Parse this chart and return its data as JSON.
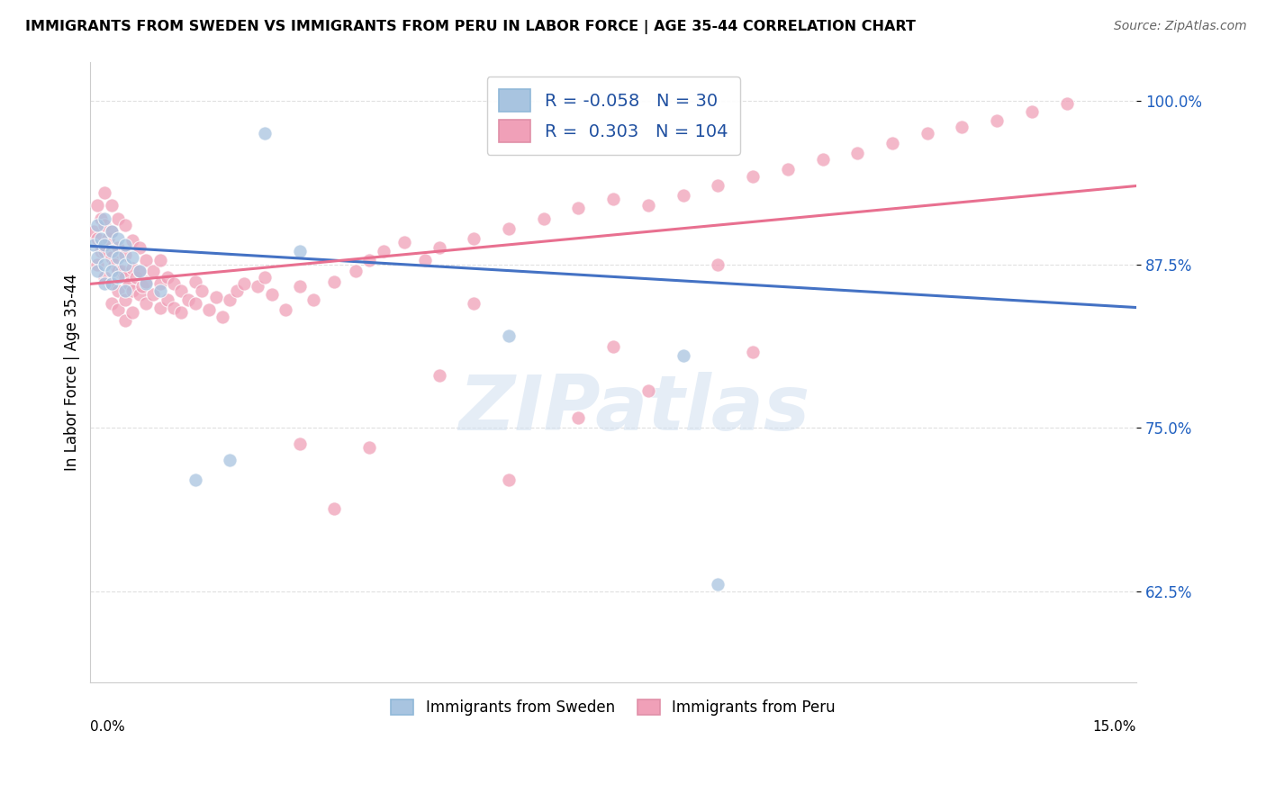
{
  "title": "IMMIGRANTS FROM SWEDEN VS IMMIGRANTS FROM PERU IN LABOR FORCE | AGE 35-44 CORRELATION CHART",
  "source": "Source: ZipAtlas.com",
  "xlabel_sweden": "Immigrants from Sweden",
  "xlabel_peru": "Immigrants from Peru",
  "ylabel": "In Labor Force | Age 35-44",
  "xlim": [
    0.0,
    0.15
  ],
  "ylim": [
    0.555,
    1.03
  ],
  "yticks": [
    0.625,
    0.75,
    0.875,
    1.0
  ],
  "ytick_labels": [
    "62.5%",
    "75.0%",
    "87.5%",
    "100.0%"
  ],
  "xtick_left": "0.0%",
  "xtick_right": "15.0%",
  "sweden_R": -0.058,
  "sweden_N": 30,
  "peru_R": 0.303,
  "peru_N": 104,
  "sweden_color": "#a8c4e0",
  "peru_color": "#f0a0b8",
  "sweden_line_color": "#4472c4",
  "peru_line_color": "#e87090",
  "legend_text_color": "#2050a0",
  "watermark_color": "#d0dff0",
  "background_color": "#ffffff",
  "grid_color": "#e0e0e0",
  "sweden_x": [
    0.0005,
    0.001,
    0.001,
    0.001,
    0.0015,
    0.002,
    0.002,
    0.002,
    0.002,
    0.003,
    0.003,
    0.003,
    0.003,
    0.004,
    0.004,
    0.004,
    0.005,
    0.005,
    0.005,
    0.006,
    0.007,
    0.008,
    0.01,
    0.015,
    0.02,
    0.025,
    0.03,
    0.06,
    0.085,
    0.09
  ],
  "sweden_y": [
    0.89,
    0.905,
    0.88,
    0.87,
    0.895,
    0.91,
    0.89,
    0.875,
    0.86,
    0.9,
    0.885,
    0.87,
    0.86,
    0.895,
    0.88,
    0.865,
    0.89,
    0.875,
    0.855,
    0.88,
    0.87,
    0.86,
    0.855,
    0.71,
    0.725,
    0.975,
    0.885,
    0.82,
    0.805,
    0.63
  ],
  "peru_x": [
    0.0005,
    0.001,
    0.001,
    0.001,
    0.0015,
    0.0015,
    0.002,
    0.002,
    0.002,
    0.002,
    0.0025,
    0.003,
    0.003,
    0.003,
    0.003,
    0.003,
    0.0035,
    0.004,
    0.004,
    0.004,
    0.004,
    0.004,
    0.0045,
    0.005,
    0.005,
    0.005,
    0.005,
    0.005,
    0.0055,
    0.006,
    0.006,
    0.006,
    0.006,
    0.0065,
    0.007,
    0.007,
    0.007,
    0.0075,
    0.008,
    0.008,
    0.008,
    0.009,
    0.009,
    0.01,
    0.01,
    0.01,
    0.011,
    0.011,
    0.012,
    0.012,
    0.013,
    0.013,
    0.014,
    0.015,
    0.015,
    0.016,
    0.017,
    0.018,
    0.019,
    0.02,
    0.021,
    0.022,
    0.024,
    0.025,
    0.026,
    0.028,
    0.03,
    0.032,
    0.035,
    0.038,
    0.04,
    0.042,
    0.045,
    0.048,
    0.05,
    0.055,
    0.06,
    0.065,
    0.07,
    0.075,
    0.08,
    0.085,
    0.09,
    0.095,
    0.1,
    0.105,
    0.11,
    0.115,
    0.12,
    0.125,
    0.13,
    0.135,
    0.14,
    0.055,
    0.07,
    0.075,
    0.08,
    0.09,
    0.095,
    0.06,
    0.03,
    0.035,
    0.04,
    0.05
  ],
  "peru_y": [
    0.9,
    0.92,
    0.895,
    0.875,
    0.91,
    0.885,
    0.93,
    0.905,
    0.885,
    0.865,
    0.895,
    0.92,
    0.9,
    0.88,
    0.86,
    0.845,
    0.875,
    0.91,
    0.888,
    0.87,
    0.855,
    0.84,
    0.87,
    0.905,
    0.882,
    0.865,
    0.848,
    0.832,
    0.86,
    0.893,
    0.872,
    0.855,
    0.838,
    0.865,
    0.888,
    0.87,
    0.852,
    0.858,
    0.878,
    0.862,
    0.845,
    0.87,
    0.852,
    0.878,
    0.86,
    0.842,
    0.865,
    0.848,
    0.86,
    0.842,
    0.855,
    0.838,
    0.848,
    0.862,
    0.845,
    0.855,
    0.84,
    0.85,
    0.835,
    0.848,
    0.855,
    0.86,
    0.858,
    0.865,
    0.852,
    0.84,
    0.858,
    0.848,
    0.862,
    0.87,
    0.878,
    0.885,
    0.892,
    0.878,
    0.888,
    0.895,
    0.902,
    0.91,
    0.918,
    0.925,
    0.92,
    0.928,
    0.935,
    0.942,
    0.948,
    0.955,
    0.96,
    0.968,
    0.975,
    0.98,
    0.985,
    0.992,
    0.998,
    0.845,
    0.758,
    0.812,
    0.778,
    0.875,
    0.808,
    0.71,
    0.738,
    0.688,
    0.735,
    0.79
  ]
}
